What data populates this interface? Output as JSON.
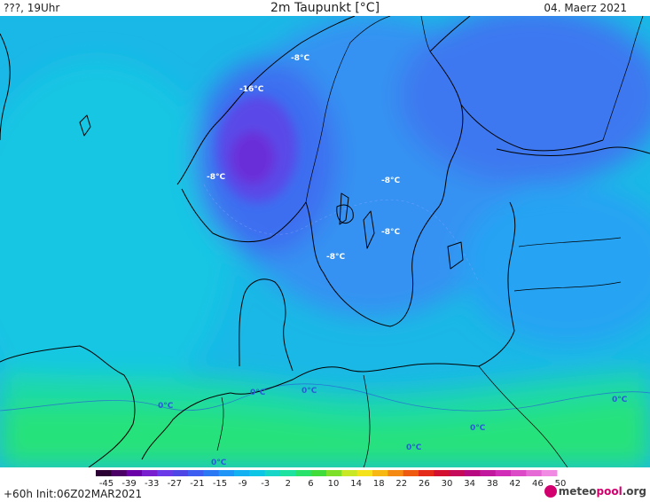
{
  "header": {
    "left": "???, 19Uhr",
    "title": "2m Taupunkt [°C]",
    "date": "04. Maerz 2021"
  },
  "map_labels": [
    {
      "text": "-8°C",
      "color": "#ffffff"
    },
    {
      "text": "-16°C",
      "color": "#ffffff"
    },
    {
      "text": "-8°C",
      "color": "#ffffff"
    },
    {
      "text": "-8°C",
      "color": "#ffffff"
    },
    {
      "text": "-8°C",
      "color": "#ffffff"
    },
    {
      "text": "-8°C",
      "color": "#ffffff"
    },
    {
      "text": "0°C",
      "color": "#2a5bd7"
    },
    {
      "text": "0°C",
      "color": "#2a5bd7"
    },
    {
      "text": "0°C",
      "color": "#2a5bd7"
    },
    {
      "text": "0°C",
      "color": "#2a5bd7"
    },
    {
      "text": "0°C",
      "color": "#2a5bd7"
    },
    {
      "text": "0°C",
      "color": "#2a5bd7"
    },
    {
      "text": "0°C",
      "color": "#2a5bd7"
    }
  ],
  "legend": {
    "ticks": [
      "-45",
      "-39",
      "-33",
      "-27",
      "-21",
      "-15",
      "-9",
      "-3",
      "2",
      "6",
      "10",
      "14",
      "18",
      "22",
      "26",
      "30",
      "34",
      "38",
      "42",
      "46",
      "50"
    ],
    "colors": [
      "#2a0033",
      "#4b0066",
      "#6a00a8",
      "#7a1fd0",
      "#6a3ae8",
      "#4f46e6",
      "#3d5ef0",
      "#2b78f5",
      "#1f95f7",
      "#13b1f2",
      "#0dc6e6",
      "#17d6c8",
      "#1ee2a0",
      "#28e26c",
      "#3fdc3c",
      "#7fe02a",
      "#c8e826",
      "#f4e31a",
      "#f8b814",
      "#f48a12",
      "#ee5a10",
      "#e42a18",
      "#d41030",
      "#c40a58",
      "#b80a80",
      "#c2189e",
      "#d02cb8",
      "#dc4ac8",
      "#e66ad6",
      "#f08ae2"
    ]
  },
  "footer": {
    "run_info": "+60h  Init:06Z02MAR2021",
    "brand_part1": "meteo",
    "brand_part2": "pool",
    "brand_part3": ".org"
  }
}
